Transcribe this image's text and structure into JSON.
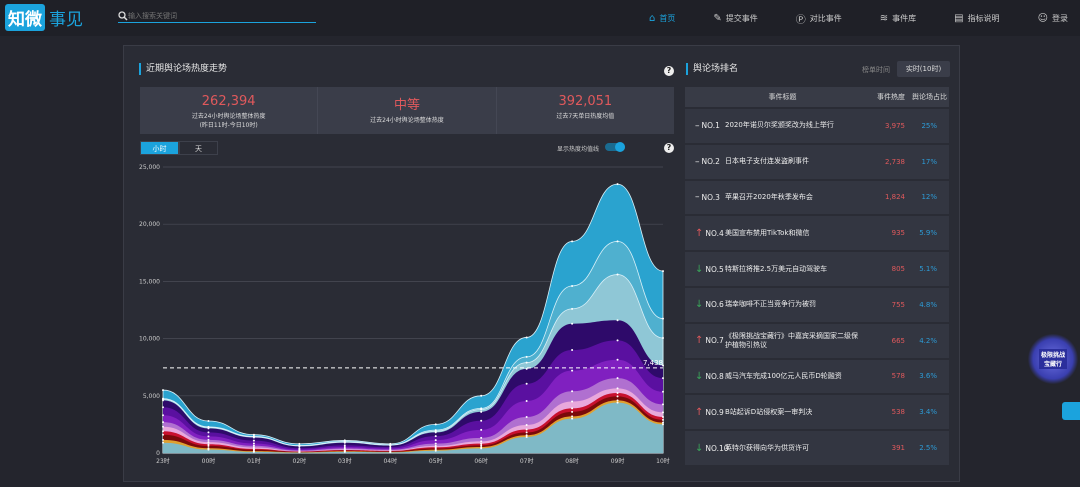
{
  "nav": {
    "logo_a": "知微",
    "logo_b": "事见",
    "search_placeholder": "输入搜索关键词",
    "items": [
      {
        "label": "首页",
        "icon": "home-icon"
      },
      {
        "label": "提交事件",
        "icon": "document-edit-icon"
      },
      {
        "label": "对比事件",
        "icon": "pk-icon"
      },
      {
        "label": "事件库",
        "icon": "layers-icon"
      },
      {
        "label": "指标说明",
        "icon": "book-icon"
      },
      {
        "label": "登录",
        "icon": "user-icon"
      }
    ]
  },
  "trend": {
    "title": "近期舆论场热度走势",
    "stats": [
      {
        "value": "262,394",
        "label": "过去24小时舆论场整体热度",
        "sub": "(昨日11时-今日10时)"
      },
      {
        "value": "中等",
        "label": "过去24小时舆论场整体热度",
        "sub": ""
      },
      {
        "value": "392,051",
        "label": "过去7天单日热度均值",
        "sub": ""
      }
    ],
    "tabs": [
      "小时",
      "天"
    ],
    "toggle_label": "显示热度均值线",
    "toggle_on": true
  },
  "chart_data": {
    "type": "area",
    "stacked": true,
    "x": [
      "23时",
      "00时",
      "01时",
      "02时",
      "03时",
      "04时",
      "05时",
      "06时",
      "07时",
      "08时",
      "09时",
      "10时"
    ],
    "yticks": [
      "0",
      "5,000",
      "10,000",
      "15,000",
      "20,000",
      "25,000"
    ],
    "ylim": [
      0,
      25000
    ],
    "grid": true,
    "average_line": {
      "value": 7438,
      "label": "7,438"
    },
    "series": [
      {
        "color": "#7fb9c6",
        "values": [
          900,
          300,
          100,
          30,
          100,
          60,
          200,
          400,
          1400,
          3000,
          4400,
          2500
        ]
      },
      {
        "color": "#e0a030",
        "values": [
          250,
          120,
          60,
          30,
          50,
          30,
          80,
          120,
          150,
          200,
          200,
          150
        ]
      },
      {
        "color": "#7a0a0a",
        "values": [
          450,
          200,
          120,
          40,
          60,
          50,
          120,
          150,
          250,
          400,
          350,
          250
        ]
      },
      {
        "color": "#c8102e",
        "values": [
          300,
          150,
          80,
          30,
          50,
          40,
          100,
          150,
          250,
          300,
          300,
          250
        ]
      },
      {
        "color": "#e8a8dc",
        "values": [
          400,
          180,
          120,
          40,
          60,
          50,
          120,
          200,
          400,
          600,
          400,
          400
        ]
      },
      {
        "color": "#b070d0",
        "values": [
          400,
          200,
          150,
          50,
          80,
          60,
          200,
          300,
          700,
          900,
          900,
          700
        ]
      },
      {
        "color": "#8020c0",
        "values": [
          600,
          300,
          200,
          80,
          120,
          100,
          300,
          700,
          1400,
          1800,
          1600,
          1100
        ]
      },
      {
        "color": "#5a10a0",
        "values": [
          700,
          350,
          250,
          120,
          150,
          120,
          350,
          800,
          1500,
          1800,
          1700,
          1200
        ]
      },
      {
        "color": "#2e0a6a",
        "values": [
          600,
          350,
          270,
          160,
          230,
          140,
          330,
          780,
          1300,
          2300,
          1750,
          1100
        ]
      },
      {
        "color": "#8fc7d6",
        "values": [
          100,
          80,
          50,
          40,
          50,
          40,
          100,
          200,
          550,
          1300,
          4000,
          2400
        ]
      },
      {
        "color": "#4fb0cf",
        "values": [
          50,
          50,
          50,
          30,
          50,
          30,
          100,
          100,
          500,
          2000,
          2900,
          1700
        ]
      },
      {
        "color": "#2aa3cf",
        "values": [
          750,
          520,
          150,
          150,
          100,
          80,
          500,
          1100,
          1700,
          3900,
          5000,
          4150
        ]
      }
    ]
  },
  "ranking": {
    "title": "舆论场排名",
    "time_label": "榜单时间",
    "time_value": "实时(10时)",
    "headers": [
      "事件标题",
      "事件热度",
      "舆论场占比"
    ],
    "rows": [
      {
        "rank": "NO.1",
        "trend": "same",
        "title": "2020年诺贝尔奖颁奖改为线上举行",
        "heat": "3,975",
        "share": "25%"
      },
      {
        "rank": "NO.2",
        "trend": "same",
        "title": "日本电子支付连发盗刷事件",
        "heat": "2,738",
        "share": "17%"
      },
      {
        "rank": "NO.3",
        "trend": "same",
        "title": "苹果召开2020年秋季发布会",
        "heat": "1,824",
        "share": "12%"
      },
      {
        "rank": "NO.4",
        "trend": "up",
        "title": "美国宣布禁用TikTok和微信",
        "heat": "935",
        "share": "5.9%"
      },
      {
        "rank": "NO.5",
        "trend": "down",
        "title": "特斯拉将推2.5万美元自动驾驶车",
        "heat": "805",
        "share": "5.1%"
      },
      {
        "rank": "NO.6",
        "trend": "down",
        "title": "瑞幸咖啡不正当竞争行为被罚",
        "heat": "755",
        "share": "4.8%"
      },
      {
        "rank": "NO.7",
        "trend": "up",
        "title": "《极限挑战宝藏行》中嘉宾采摘国家二级保护植物引热议",
        "heat": "665",
        "share": "4.2%"
      },
      {
        "rank": "NO.8",
        "trend": "down",
        "title": "威马汽车完成100亿元人民币D轮融资",
        "heat": "578",
        "share": "3.6%"
      },
      {
        "rank": "NO.9",
        "trend": "up",
        "title": "B站起诉D站侵权案一审判决",
        "heat": "538",
        "share": "3.4%"
      },
      {
        "rank": "NO.10",
        "trend": "down",
        "title": "英特尔获得向华为供货许可",
        "heat": "391",
        "share": "2.5%"
      }
    ]
  },
  "colors": {
    "accent": "#1ba3dd",
    "heat": "#e0595c",
    "share": "#2d9bd6",
    "up": "#e0595c",
    "down": "#3aa55a"
  }
}
